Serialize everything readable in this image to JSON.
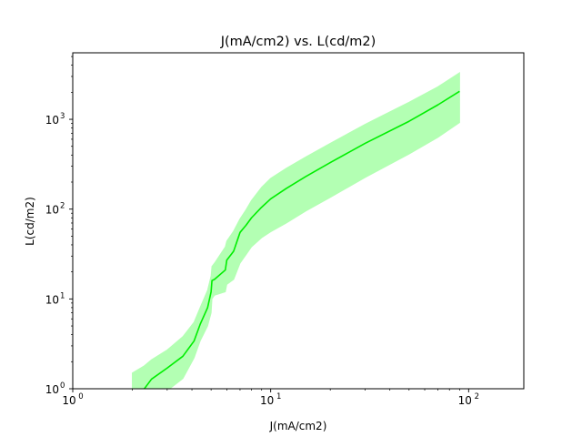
{
  "chart_data": {
    "type": "line",
    "title": "J(mA/cm2) vs. L(cd/m2)",
    "xlabel": "J(mA/cm2)",
    "ylabel": "L(cd/m2)",
    "xscale": "log",
    "yscale": "log",
    "xlim": [
      1,
      190
    ],
    "ylim": [
      1,
      5500
    ],
    "grid": false,
    "x_ticks": [
      {
        "value": 1,
        "base": "10",
        "exp": "0"
      },
      {
        "value": 10,
        "base": "10",
        "exp": "1"
      },
      {
        "value": 100,
        "base": "10",
        "exp": "2"
      }
    ],
    "y_ticks": [
      {
        "value": 1,
        "base": "10",
        "exp": "0"
      },
      {
        "value": 10,
        "base": "10",
        "exp": "1"
      },
      {
        "value": 100,
        "base": "10",
        "exp": "2"
      },
      {
        "value": 1000,
        "base": "10",
        "exp": "3"
      }
    ],
    "series": [
      {
        "color": "#00ee00",
        "band_color": "#b3ffb3",
        "x": [
          2.0,
          2.3,
          2.5,
          3.0,
          3.6,
          4.1,
          4.4,
          4.8,
          5.0,
          5.05,
          5.2,
          5.9,
          6.0,
          6.5,
          7.0,
          7.5,
          8.0,
          9.0,
          10.0,
          12.0,
          15.0,
          20.0,
          30.0,
          50.0,
          70.0,
          90.0
        ],
        "y": [
          0.75,
          1.0,
          1.28,
          1.7,
          2.3,
          3.4,
          5.2,
          8.0,
          12.0,
          16.0,
          16.5,
          21.0,
          27.0,
          34.0,
          55.0,
          66.0,
          80.0,
          105.0,
          130.0,
          170.0,
          230.0,
          330.0,
          540.0,
          950.0,
          1450.0,
          2050.0
        ],
        "y_lower": [
          0.45,
          0.6,
          0.72,
          0.95,
          1.3,
          2.2,
          3.4,
          5.0,
          7.0,
          10.0,
          11.0,
          12.0,
          14.5,
          16.5,
          25.0,
          31.0,
          38.0,
          48.0,
          56.0,
          70.0,
          95.0,
          135.0,
          225.0,
          410.0,
          630.0,
          920.0
        ],
        "y_upper": [
          1.5,
          1.8,
          2.1,
          2.7,
          3.8,
          5.5,
          8.0,
          12.5,
          18.0,
          23.0,
          25.0,
          38.0,
          44.0,
          57.0,
          78.0,
          98.0,
          125.0,
          175.0,
          220.0,
          285.0,
          380.0,
          540.0,
          880.0,
          1550.0,
          2300.0,
          3300.0
        ]
      }
    ]
  }
}
